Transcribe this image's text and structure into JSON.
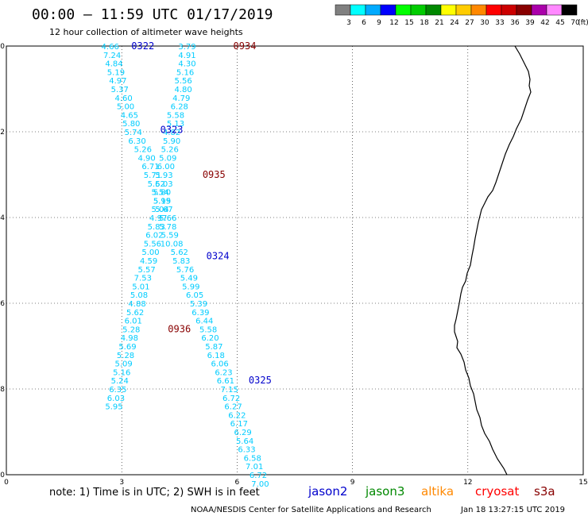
{
  "header": {
    "title": "00:00 – 11:59 UTC 01/17/2019",
    "subtitle": "12 hour collection of altimeter wave heights"
  },
  "colorbar": {
    "unit": "(ft)",
    "ticks": [
      "3",
      "6",
      "9",
      "12",
      "15",
      "18",
      "21",
      "24",
      "27",
      "30",
      "33",
      "36",
      "39",
      "42",
      "45",
      "70"
    ],
    "colors": [
      "#808080",
      "#00ffff",
      "#00aaff",
      "#0000ff",
      "#00ff00",
      "#00cc00",
      "#008800",
      "#ffff00",
      "#ffcc00",
      "#ff8800",
      "#ff0000",
      "#cc0000",
      "#880000",
      "#aa00aa",
      "#ff88ff",
      "#000000"
    ]
  },
  "footer": {
    "note": "note:  1) Time is in UTC;  2) SWH is in feet",
    "credit": "NOAA/NESDIS Center for Satellite Applications and Research",
    "timestamp": "Jan 18 13:27:15 UTC 2019"
  },
  "legend": [
    {
      "label": "jason2",
      "color": "#0000cc"
    },
    {
      "label": "jason3",
      "color": "#008800"
    },
    {
      "label": "altika",
      "color": "#ff8800"
    },
    {
      "label": "cryosat",
      "color": "#ff0000"
    },
    {
      "label": "s3a",
      "color": "#880000"
    }
  ],
  "chart_data": {
    "type": "scatter",
    "xlim": [
      0,
      15
    ],
    "ylim": [
      -20,
      -10
    ],
    "xticks": [
      "0",
      "3",
      "6",
      "9",
      "12",
      "15"
    ],
    "yticks": [
      "-10",
      "-12",
      "-14",
      "-16",
      "-18",
      "-20"
    ],
    "grid": true,
    "value_color": "#00ccff",
    "pass_labels": [
      {
        "text": "0322",
        "x": 3.25,
        "y": -10.0,
        "color": "#0000cc"
      },
      {
        "text": "0934",
        "x": 5.9,
        "y": -10.0,
        "color": "#880000"
      },
      {
        "text": "0323",
        "x": 4.0,
        "y": -11.95,
        "color": "#0000cc"
      },
      {
        "text": "0935",
        "x": 5.1,
        "y": -13.0,
        "color": "#880000"
      },
      {
        "text": "0324",
        "x": 5.2,
        "y": -14.9,
        "color": "#0000cc"
      },
      {
        "text": "0936",
        "x": 4.2,
        "y": -16.6,
        "color": "#880000"
      },
      {
        "text": "0325",
        "x": 6.3,
        "y": -17.8,
        "color": "#0000cc"
      }
    ],
    "series": [
      {
        "name": "0322/0323/0324/0325",
        "points": [
          {
            "x": 2.7,
            "y": -10.0,
            "v": "4.66"
          },
          {
            "x": 2.75,
            "y": -10.2,
            "v": "7.24"
          },
          {
            "x": 2.8,
            "y": -10.4,
            "v": "4.84"
          },
          {
            "x": 2.85,
            "y": -10.6,
            "v": "5.19"
          },
          {
            "x": 2.9,
            "y": -10.8,
            "v": "4.97"
          },
          {
            "x": 2.95,
            "y": -11.0,
            "v": "5.37"
          },
          {
            "x": 3.05,
            "y": -11.2,
            "v": "4.60"
          },
          {
            "x": 3.1,
            "y": -11.4,
            "v": "5.00"
          },
          {
            "x": 3.2,
            "y": -11.6,
            "v": "4.65"
          },
          {
            "x": 3.25,
            "y": -11.8,
            "v": "5.80"
          },
          {
            "x": 3.3,
            "y": -12.0,
            "v": "5.74"
          },
          {
            "x": 3.4,
            "y": -12.2,
            "v": "6.30"
          },
          {
            "x": 3.55,
            "y": -12.4,
            "v": "5.26"
          },
          {
            "x": 3.65,
            "y": -12.6,
            "v": "4.90"
          },
          {
            "x": 3.75,
            "y": -12.8,
            "v": "6.71"
          },
          {
            "x": 3.8,
            "y": -13.0,
            "v": "5.71"
          },
          {
            "x": 3.9,
            "y": -13.2,
            "v": "5.62"
          },
          {
            "x": 4.0,
            "y": -13.4,
            "v": "5.54"
          },
          {
            "x": 4.05,
            "y": -13.6,
            "v": "5.15"
          },
          {
            "x": 4.1,
            "y": -13.8,
            "v": "5.67"
          },
          {
            "x": 4.2,
            "y": -14.0,
            "v": "5.66"
          },
          {
            "x": 4.2,
            "y": -14.2,
            "v": "5.78"
          },
          {
            "x": 4.25,
            "y": -14.4,
            "v": "5.59"
          },
          {
            "x": 4.3,
            "y": -14.6,
            "v": "10.08"
          },
          {
            "x": 4.5,
            "y": -14.8,
            "v": "5.62"
          },
          {
            "x": 4.55,
            "y": -15.0,
            "v": "5.83"
          },
          {
            "x": 4.65,
            "y": -15.2,
            "v": "5.76"
          },
          {
            "x": 4.75,
            "y": -15.4,
            "v": "5.49"
          },
          {
            "x": 4.8,
            "y": -15.6,
            "v": "5.99"
          },
          {
            "x": 4.9,
            "y": -15.8,
            "v": "6.05"
          },
          {
            "x": 5.0,
            "y": -16.0,
            "v": "5.39"
          },
          {
            "x": 5.05,
            "y": -16.2,
            "v": "6.39"
          },
          {
            "x": 5.15,
            "y": -16.4,
            "v": "6.44"
          },
          {
            "x": 5.25,
            "y": -16.6,
            "v": "5.58"
          },
          {
            "x": 5.3,
            "y": -16.8,
            "v": "6.20"
          },
          {
            "x": 5.4,
            "y": -17.0,
            "v": "5.87"
          },
          {
            "x": 5.45,
            "y": -17.2,
            "v": "6.18"
          },
          {
            "x": 5.55,
            "y": -17.4,
            "v": "6.06"
          },
          {
            "x": 5.65,
            "y": -17.6,
            "v": "6.23"
          },
          {
            "x": 5.7,
            "y": -17.8,
            "v": "6.61"
          },
          {
            "x": 5.8,
            "y": -18.0,
            "v": "7.15"
          },
          {
            "x": 5.85,
            "y": -18.2,
            "v": "6.72"
          },
          {
            "x": 5.9,
            "y": -18.4,
            "v": "6.27"
          },
          {
            "x": 6.0,
            "y": -18.6,
            "v": "6.22"
          },
          {
            "x": 6.05,
            "y": -18.8,
            "v": "6.17"
          },
          {
            "x": 6.15,
            "y": -19.0,
            "v": "6.29"
          },
          {
            "x": 6.2,
            "y": -19.2,
            "v": "5.64"
          },
          {
            "x": 6.25,
            "y": -19.4,
            "v": "6.33"
          },
          {
            "x": 6.4,
            "y": -19.6,
            "v": "6.58"
          },
          {
            "x": 6.45,
            "y": -19.8,
            "v": "7.01"
          },
          {
            "x": 6.55,
            "y": -20.0,
            "v": "6.72"
          },
          {
            "x": 6.6,
            "y": -20.2,
            "v": "7.00"
          }
        ]
      },
      {
        "name": "0934/0935/0936",
        "points": [
          {
            "x": 4.7,
            "y": -10.0,
            "v": "3.79"
          },
          {
            "x": 4.7,
            "y": -10.2,
            "v": "4.91"
          },
          {
            "x": 4.7,
            "y": -10.4,
            "v": "4.30"
          },
          {
            "x": 4.65,
            "y": -10.6,
            "v": "5.16"
          },
          {
            "x": 4.6,
            "y": -10.8,
            "v": "5.56"
          },
          {
            "x": 4.6,
            "y": -11.0,
            "v": "4.80"
          },
          {
            "x": 4.55,
            "y": -11.2,
            "v": "4.79"
          },
          {
            "x": 4.5,
            "y": -11.4,
            "v": "6.28"
          },
          {
            "x": 4.4,
            "y": -11.6,
            "v": "5.58"
          },
          {
            "x": 4.4,
            "y": -11.8,
            "v": "5.13"
          },
          {
            "x": 4.3,
            "y": -12.0,
            "v": "4.82"
          },
          {
            "x": 4.3,
            "y": -12.2,
            "v": "5.90"
          },
          {
            "x": 4.25,
            "y": -12.4,
            "v": "5.26"
          },
          {
            "x": 4.2,
            "y": -12.6,
            "v": "5.09"
          },
          {
            "x": 4.15,
            "y": -12.8,
            "v": "6.00"
          },
          {
            "x": 4.1,
            "y": -13.0,
            "v": "5.93"
          },
          {
            "x": 4.1,
            "y": -13.2,
            "v": "5.03"
          },
          {
            "x": 4.05,
            "y": -13.4,
            "v": "5.80"
          },
          {
            "x": 4.05,
            "y": -13.6,
            "v": "5.99"
          },
          {
            "x": 4.0,
            "y": -13.8,
            "v": "5.04"
          },
          {
            "x": 3.95,
            "y": -14.0,
            "v": "4.97"
          },
          {
            "x": 3.9,
            "y": -14.2,
            "v": "5.83"
          },
          {
            "x": 3.85,
            "y": -14.4,
            "v": "6.02"
          },
          {
            "x": 3.8,
            "y": -14.6,
            "v": "5.56"
          },
          {
            "x": 3.75,
            "y": -14.8,
            "v": "5.00"
          },
          {
            "x": 3.7,
            "y": -15.0,
            "v": "4.59"
          },
          {
            "x": 3.65,
            "y": -15.2,
            "v": "5.57"
          },
          {
            "x": 3.55,
            "y": -15.4,
            "v": "7.53"
          },
          {
            "x": 3.5,
            "y": -15.6,
            "v": "5.01"
          },
          {
            "x": 3.45,
            "y": -15.8,
            "v": "5.08"
          },
          {
            "x": 3.4,
            "y": -16.0,
            "v": "4.88"
          },
          {
            "x": 3.35,
            "y": -16.2,
            "v": "5.62"
          },
          {
            "x": 3.3,
            "y": -16.4,
            "v": "6.01"
          },
          {
            "x": 3.25,
            "y": -16.6,
            "v": "5.28"
          },
          {
            "x": 3.2,
            "y": -16.8,
            "v": "4.98"
          },
          {
            "x": 3.15,
            "y": -17.0,
            "v": "5.69"
          },
          {
            "x": 3.1,
            "y": -17.2,
            "v": "5.28"
          },
          {
            "x": 3.05,
            "y": -17.4,
            "v": "5.09"
          },
          {
            "x": 3.0,
            "y": -17.6,
            "v": "5.16"
          },
          {
            "x": 2.95,
            "y": -17.8,
            "v": "5.24"
          },
          {
            "x": 2.9,
            "y": -18.0,
            "v": "6.35"
          },
          {
            "x": 2.85,
            "y": -18.2,
            "v": "6.03"
          },
          {
            "x": 2.8,
            "y": -18.4,
            "v": "5.95"
          }
        ]
      }
    ]
  }
}
